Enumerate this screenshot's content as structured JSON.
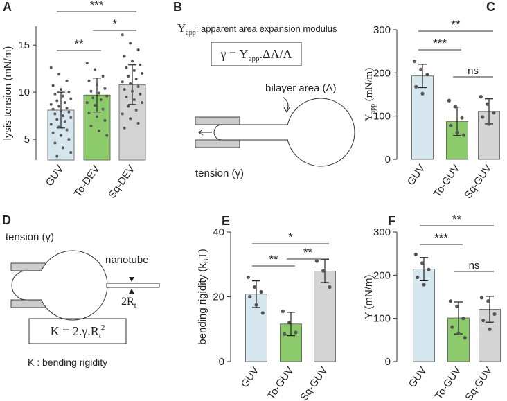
{
  "chart_data": [
    {
      "type": "bar",
      "panel": "A",
      "ylabel": [
        {
          "text": "lysis tension (mN/m)"
        }
      ],
      "categories": [
        "GUV",
        "To-DEV",
        "Sq-DEV"
      ],
      "colors": [
        "#d5e6ef",
        "#8dca6c",
        "#d4d4d4"
      ],
      "values": [
        8.1,
        9.7,
        10.8
      ],
      "errors": [
        1.9,
        1.8,
        2.1
      ],
      "points": [
        [
          12.6,
          11.9,
          11.2,
          10.7,
          10.3,
          10.0,
          9.8,
          9.6,
          9.3,
          9.1,
          8.9,
          8.7,
          8.5,
          8.3,
          8.2,
          8.0,
          7.9,
          7.7,
          7.5,
          7.3,
          7.1,
          6.9,
          6.6,
          6.3,
          6.0,
          5.7,
          5.4,
          5.0,
          4.6,
          4.1,
          3.6,
          3.2
        ],
        [
          13.1,
          12.4,
          11.7,
          11.2,
          10.8,
          10.4,
          10.1,
          9.9,
          9.6,
          9.4,
          9.2,
          8.9,
          8.6,
          8.2,
          7.8,
          7.4,
          7.0,
          6.4,
          5.9,
          5.4
        ],
        [
          16.1,
          15.2,
          14.5,
          13.8,
          13.3,
          12.9,
          12.6,
          12.3,
          12.0,
          11.7,
          11.4,
          11.1,
          10.9,
          10.6,
          10.3,
          10.1,
          9.8,
          9.5,
          9.2,
          8.9,
          8.5,
          8.1,
          7.7,
          7.2,
          6.7,
          6.2
        ]
      ],
      "ylim": [
        2.8,
        17
      ],
      "yticks": [
        5,
        10,
        15
      ],
      "annotations": [
        {
          "text": "**",
          "between": [
            "GUV",
            "To-DEV"
          ]
        },
        {
          "text": "*",
          "between": [
            "To-DEV",
            "Sq-DEV"
          ]
        },
        {
          "text": "***",
          "between": [
            "GUV",
            "Sq-DEV"
          ]
        }
      ]
    },
    {
      "type": "bar",
      "panel": "C",
      "ylabel": [
        {
          "text": "Y"
        },
        {
          "text": "app",
          "sub": true
        },
        {
          "text": " (mN/m)"
        }
      ],
      "categories": [
        "GUV",
        "To-GUV",
        "Sq-GUV"
      ],
      "colors": [
        "#d5e6ef",
        "#8dca6c",
        "#d4d4d4"
      ],
      "values": [
        193,
        88,
        111
      ],
      "errors": [
        27,
        33,
        29
      ],
      "points": [
        [
          227,
          208,
          196,
          168,
          152
        ],
        [
          136,
          122,
          96,
          78,
          62,
          56
        ],
        [
          145,
          128,
          108,
          98,
          82
        ]
      ],
      "ylim": [
        0,
        300
      ],
      "yticks": [
        0,
        100,
        200,
        300
      ],
      "annotations": [
        {
          "text": "**",
          "between": [
            "GUV",
            "Sq-GUV"
          ]
        },
        {
          "text": "***",
          "between": [
            "GUV",
            "To-GUV"
          ]
        },
        {
          "text": "ns",
          "between": [
            "To-GUV",
            "Sq-GUV"
          ]
        }
      ]
    },
    {
      "type": "bar",
      "panel": "E",
      "ylabel": [
        {
          "text": "bending rigidity (k"
        },
        {
          "text": "B",
          "sub": true
        },
        {
          "text": "T)"
        }
      ],
      "categories": [
        "GUV",
        "To-GUV",
        "Sq-GUV"
      ],
      "colors": [
        "#d5e6ef",
        "#8dca6c",
        "#d4d4d4"
      ],
      "values": [
        20.8,
        11.6,
        27.9
      ],
      "errors": [
        4.1,
        3.6,
        3.5
      ],
      "points": [
        [
          26,
          23,
          21.5,
          20,
          17.5,
          15
        ],
        [
          15.5,
          12,
          9,
          8.5
        ],
        [
          31,
          28,
          23
        ]
      ],
      "ylim": [
        0,
        40
      ],
      "yticks": [
        0,
        20,
        40
      ],
      "annotations": [
        {
          "text": "*",
          "between": [
            "GUV",
            "Sq-GUV"
          ]
        },
        {
          "text": "**",
          "between": [
            "To-GUV",
            "Sq-GUV"
          ]
        },
        {
          "text": "**",
          "between": [
            "GUV",
            "To-GUV"
          ]
        }
      ]
    },
    {
      "type": "bar",
      "panel": "F",
      "ylabel": [
        {
          "text": "Y (mN/m)"
        }
      ],
      "categories": [
        "GUV",
        "To-GUV",
        "Sq-GUV"
      ],
      "colors": [
        "#d5e6ef",
        "#8dca6c",
        "#d4d4d4"
      ],
      "values": [
        214,
        101,
        121
      ],
      "errors": [
        27,
        37,
        30
      ],
      "points": [
        [
          248,
          228,
          213,
          195,
          178
        ],
        [
          140,
          128,
          100,
          80,
          65,
          55
        ],
        [
          148,
          140,
          110,
          95,
          75
        ]
      ],
      "ylim": [
        0,
        300
      ],
      "yticks": [
        0,
        100,
        200,
        300
      ],
      "annotations": [
        {
          "text": "**",
          "between": [
            "GUV",
            "Sq-GUV"
          ]
        },
        {
          "text": "***",
          "between": [
            "GUV",
            "To-GUV"
          ]
        },
        {
          "text": "ns",
          "between": [
            "To-GUV",
            "Sq-GUV"
          ]
        }
      ]
    }
  ],
  "diagrams": [
    {
      "panel": "B",
      "definition": {
        "symbol": "Y",
        "sub": "app",
        "text": ": apparent area expansion modulus"
      },
      "formula": {
        "lead": "γ = Y",
        "sub": "app",
        "tail": ".ΔA/A"
      },
      "area_label": "bilayer area (A)",
      "tension_label": "tension (γ)"
    },
    {
      "panel": "D",
      "tension_label": "tension (γ)",
      "tube_label": "nanotube",
      "radius": {
        "base": "2R",
        "sub": "t"
      },
      "formula": {
        "lead": "K = 2.γ.R",
        "sub": "t",
        "sup": "2"
      },
      "definition": "K : bending rigidity"
    }
  ]
}
